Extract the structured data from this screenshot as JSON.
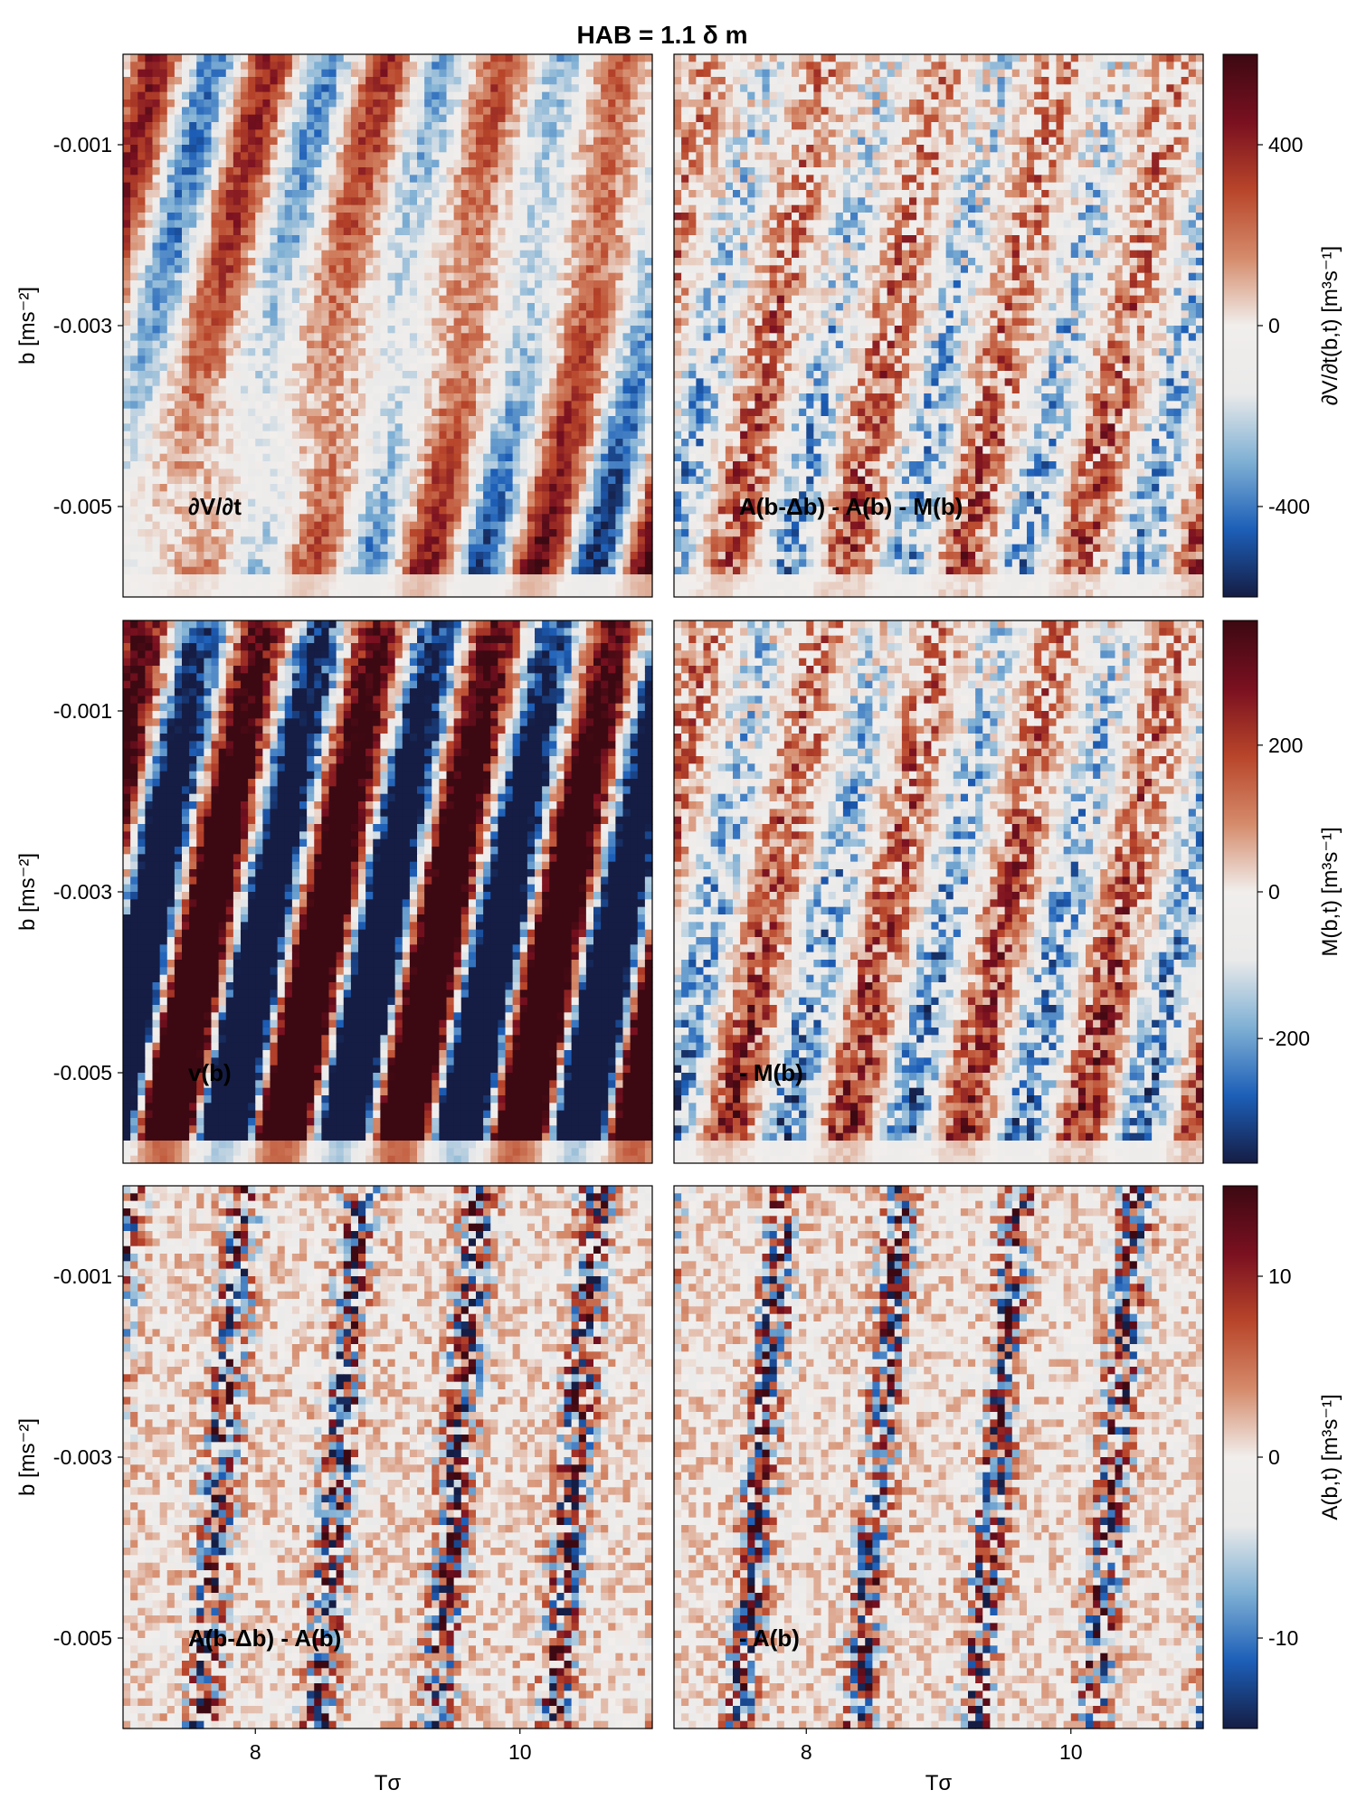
{
  "chart_data": {
    "type": "heatmap",
    "title": "HAB = 1.1 δ m",
    "xlabel": "Tσ",
    "ylabel": "b [ms⁻²]",
    "xlim": [
      7.0,
      11.0
    ],
    "ylim": [
      -0.006,
      0.0
    ],
    "x_ticks": [
      "8",
      "10"
    ],
    "x_tick_values": [
      8,
      10
    ],
    "y_ticks": [
      "-0.001",
      "-0.003",
      "-0.005"
    ],
    "y_tick_values": [
      -0.001,
      -0.003,
      -0.005
    ],
    "grid": false,
    "colormap": "balance (blue-white-red)",
    "colormap_stops": [
      "#151d44",
      "#1d5fb8",
      "#7fb0d4",
      "#eaeaea",
      "#f1eeec",
      "#d58b6b",
      "#b8452a",
      "#7a1020",
      "#3c0912"
    ],
    "panels": [
      {
        "row": 0,
        "col": 0,
        "label": "∂V/∂t"
      },
      {
        "row": 0,
        "col": 1,
        "label": "A(b-Δb) - A(b) - M(b)"
      },
      {
        "row": 1,
        "col": 0,
        "label": "v(b)"
      },
      {
        "row": 1,
        "col": 1,
        "label": "- M(b)"
      },
      {
        "row": 2,
        "col": 0,
        "label": "A(b-Δb) - A(b)"
      },
      {
        "row": 2,
        "col": 1,
        "label": "- A(b)"
      }
    ],
    "colorbars": [
      {
        "row": 0,
        "label": "∂V/∂t(b,t) [m³s⁻¹]",
        "ticks": [
          "400",
          "0",
          "-400"
        ],
        "tick_values": [
          400,
          0,
          -400
        ],
        "range": [
          -600,
          600
        ]
      },
      {
        "row": 1,
        "label": "M(b,t) [m³s⁻¹]",
        "ticks": [
          "200",
          "0",
          "-200"
        ],
        "tick_values": [
          200,
          0,
          -200
        ],
        "range": [
          -370,
          370
        ]
      },
      {
        "row": 2,
        "label": "A(b,t) [m³s⁻¹]",
        "ticks": [
          "10",
          "0",
          "-10"
        ],
        "tick_values": [
          10,
          0,
          -10
        ],
        "range": [
          -15,
          15
        ]
      }
    ]
  }
}
